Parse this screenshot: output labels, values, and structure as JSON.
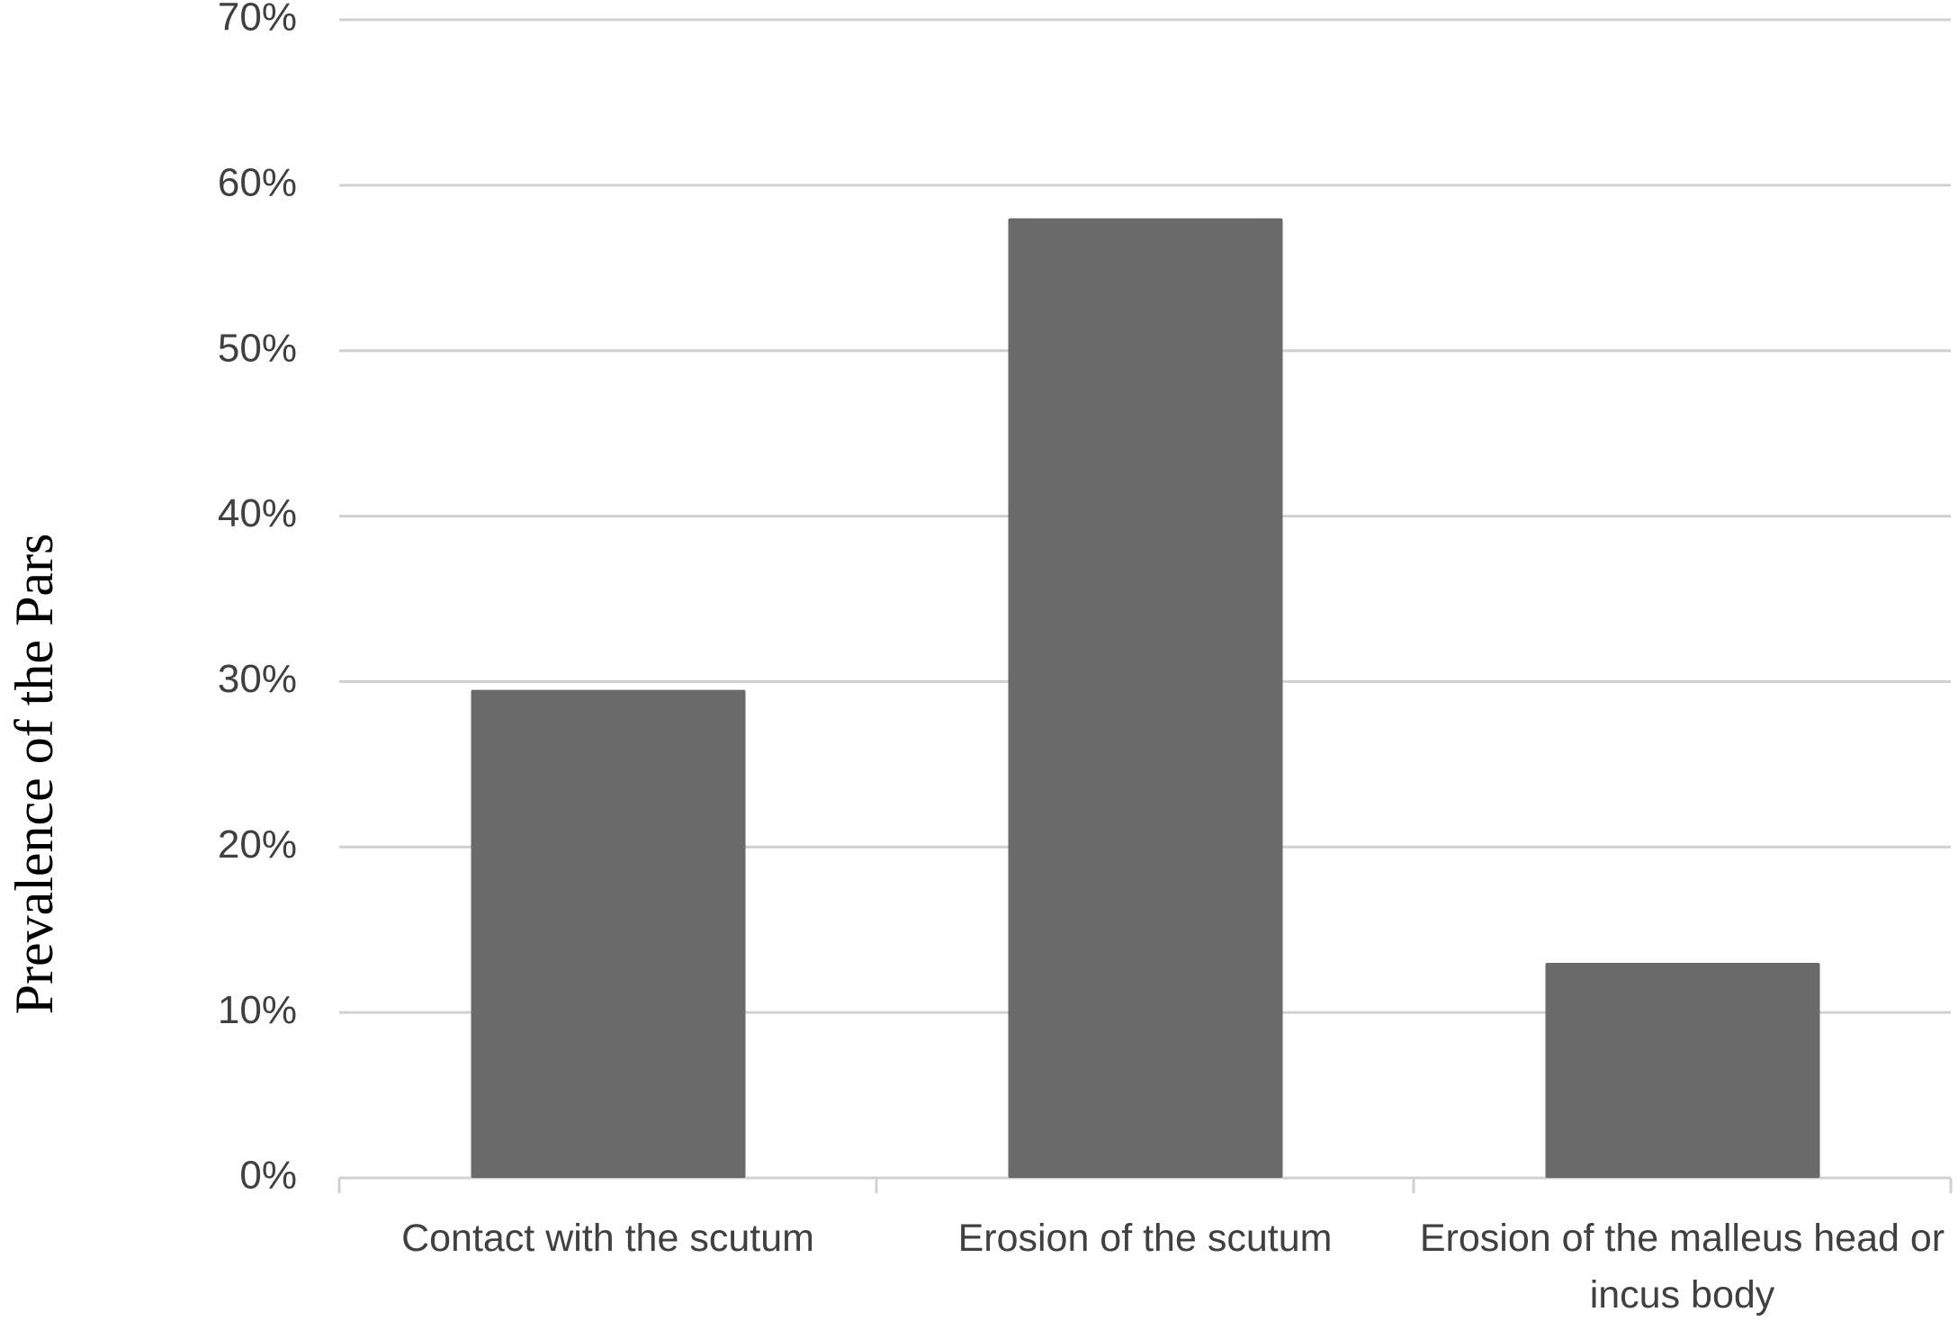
{
  "chart_data": {
    "type": "bar",
    "y_label": "Prevalence of the Pars",
    "categories": [
      "Contact with the scutum",
      "Erosion of the scutum",
      "Erosion of the malleus head or incus body"
    ],
    "values": [
      29.5,
      58,
      13
    ],
    "color": "#6a6a6a",
    "ylim": [
      0,
      70
    ],
    "yticks": [
      {
        "value": 0,
        "label": "0%"
      },
      {
        "value": 10,
        "label": "10%"
      },
      {
        "value": 20,
        "label": "20%"
      },
      {
        "value": 30,
        "label": "30%"
      },
      {
        "value": 40,
        "label": "40%"
      },
      {
        "value": 50,
        "label": "50%"
      },
      {
        "value": 60,
        "label": "60%"
      },
      {
        "value": 70,
        "label": "70%"
      }
    ],
    "grid": true
  }
}
